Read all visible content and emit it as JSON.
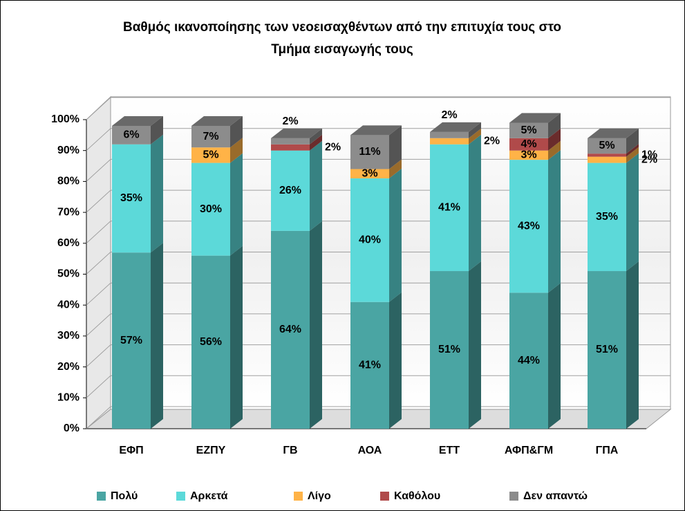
{
  "chart_data": {
    "type": "bar3d_stacked",
    "title": [
      "Βαθμός ικανοποίησης των νεοεισαχθέντων από την επιτυχία τους στο",
      "Τμήμα εισαγωγής τους"
    ],
    "categories": [
      "ΕΦΠ",
      "ΕΖΠΥ",
      "ΓΒ",
      "ΑΟΑ",
      "ΕΤΤ",
      "ΑΦΠ&ΓΜ",
      "ΓΠΑ"
    ],
    "series": [
      {
        "name": "Πολύ",
        "color": "#4aa5a3",
        "values": [
          57,
          56,
          64,
          41,
          51,
          44,
          51
        ],
        "value_labels": [
          "57%",
          "56%",
          "64%",
          "41%",
          "51%",
          "44%",
          "51%"
        ]
      },
      {
        "name": "Αρκετά",
        "color": "#5cd9d9",
        "values": [
          35,
          30,
          26,
          40,
          41,
          43,
          35
        ],
        "value_labels": [
          "35%",
          "30%",
          "26%",
          "40%",
          "41%",
          "43%",
          "35%"
        ]
      },
      {
        "name": "Λίγο",
        "color": "#ffb347",
        "values": [
          0,
          5,
          0,
          3,
          2,
          3,
          2
        ],
        "value_labels": [
          null,
          "5%",
          null,
          "3%",
          "2%",
          "3%",
          "2%"
        ]
      },
      {
        "name": "Καθόλου",
        "color": "#b04a4a",
        "values": [
          0,
          0,
          2,
          0,
          0,
          4,
          1
        ],
        "value_labels": [
          null,
          null,
          "2%",
          null,
          null,
          "4%",
          "1%"
        ]
      },
      {
        "name": "Δεν απαντώ",
        "color": "#8c8c8c",
        "values": [
          6,
          7,
          2,
          11,
          2,
          5,
          5
        ],
        "value_labels": [
          "6%",
          "7%",
          "2%",
          "11%",
          "2%",
          "5%",
          "5%"
        ]
      }
    ],
    "ylim": [
      0,
      100
    ],
    "yticks": [
      {
        "value": 0,
        "label": "0%"
      },
      {
        "value": 10,
        "label": "10%"
      },
      {
        "value": 20,
        "label": "20%"
      },
      {
        "value": 30,
        "label": "30%"
      },
      {
        "value": 40,
        "label": "40%"
      },
      {
        "value": 50,
        "label": "50%"
      },
      {
        "value": 60,
        "label": "60%"
      },
      {
        "value": 70,
        "label": "70%"
      },
      {
        "value": 80,
        "label": "80%"
      },
      {
        "value": 90,
        "label": "90%"
      },
      {
        "value": 100,
        "label": "100%"
      }
    ],
    "grid": true,
    "legend": "bottom"
  }
}
